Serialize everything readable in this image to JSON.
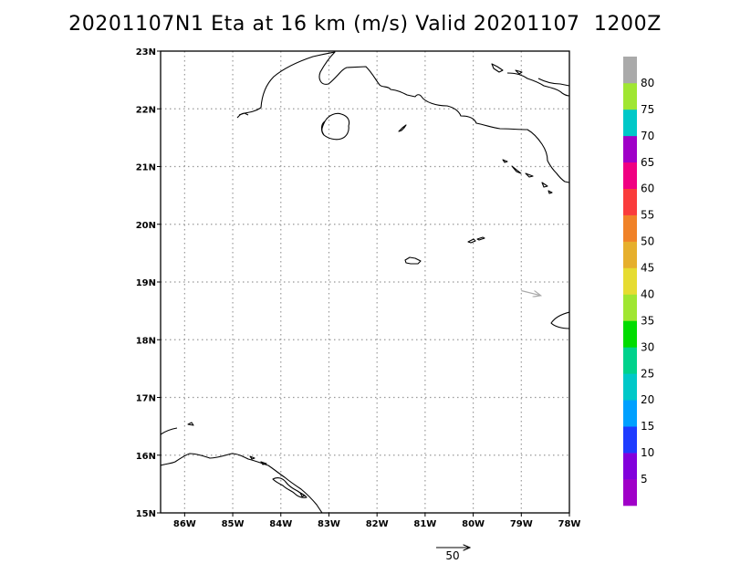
{
  "title": "20201107N1 Eta at 16 km (m/s) Valid 20201107  1200Z",
  "map": {
    "lat_range": [
      15,
      23
    ],
    "lon_range": [
      -86.5,
      -78
    ],
    "lat_labels": [
      {
        "value": 15,
        "label": "15N"
      },
      {
        "value": 16,
        "label": "16N"
      },
      {
        "value": 17,
        "label": "17N"
      },
      {
        "value": 18,
        "label": "18N"
      },
      {
        "value": 19,
        "label": "19N"
      },
      {
        "value": 20,
        "label": "20N"
      },
      {
        "value": 21,
        "label": "21N"
      },
      {
        "value": 22,
        "label": "22N"
      },
      {
        "value": 23,
        "label": "23N"
      }
    ],
    "lon_labels": [
      {
        "value": -86,
        "label": "86W"
      },
      {
        "value": -85,
        "label": "85W"
      },
      {
        "value": -84,
        "label": "84W"
      },
      {
        "value": -83,
        "label": "83W"
      },
      {
        "value": -82,
        "label": "82W"
      },
      {
        "value": -81,
        "label": "81W"
      },
      {
        "value": -80,
        "label": "80W"
      },
      {
        "value": -79,
        "label": "79W"
      },
      {
        "value": -78,
        "label": "78W"
      }
    ],
    "grid": "dotted",
    "wind_vectors": [
      {
        "lon": -79.0,
        "lat": 18.85,
        "u": 1.0,
        "v": -0.25,
        "color": "#aaaaaa"
      }
    ],
    "reference_vector": {
      "label": "50"
    }
  },
  "colorbar": {
    "colors": [
      "#a000c8",
      "#8200dc",
      "#1e3cff",
      "#00a0ff",
      "#00c8c8",
      "#00d28c",
      "#00dc00",
      "#a0e632",
      "#e6dc32",
      "#e6af2d",
      "#f08228",
      "#fa3c3c",
      "#f00082",
      "#a000c8",
      "#00c8c8",
      "#a0e632",
      "#aaaaaa"
    ],
    "labels": [
      "5",
      "10",
      "15",
      "20",
      "25",
      "30",
      "35",
      "40",
      "45",
      "50",
      "55",
      "60",
      "65",
      "70",
      "75",
      "80"
    ]
  }
}
